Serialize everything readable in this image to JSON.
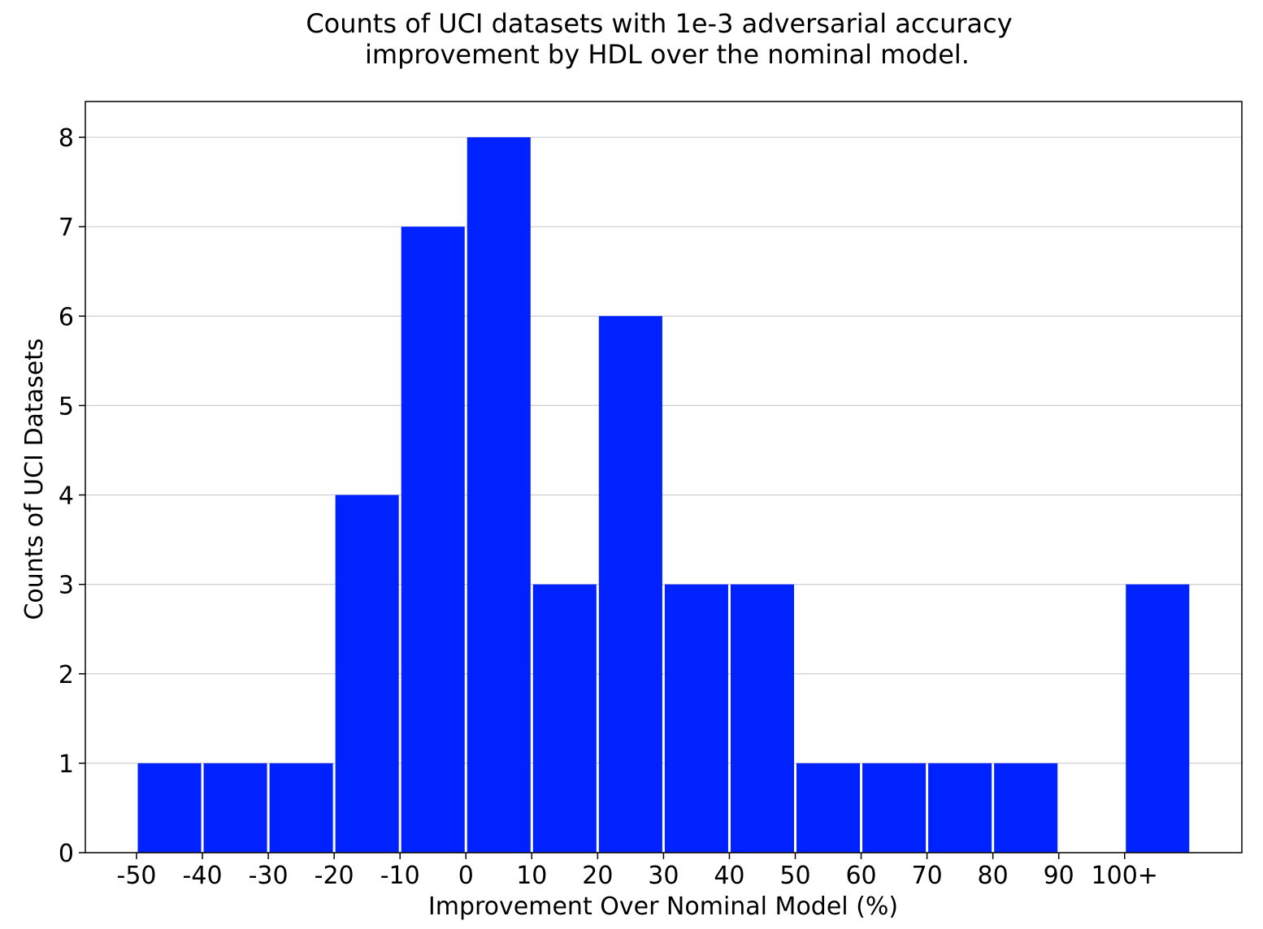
{
  "chart_data": {
    "type": "bar",
    "title_lines": [
      "Counts of UCI datasets with 1e-3 adversarial accuracy",
      "improvement by HDL over the nominal model."
    ],
    "xlabel": "Improvement Over Nominal Model (%)",
    "ylabel": "Counts of UCI Datasets",
    "x_ticks": [
      "-50",
      "-40",
      "-30",
      "-20",
      "-10",
      "0",
      "10",
      "20",
      "30",
      "40",
      "50",
      "60",
      "70",
      "80",
      "90",
      "100+"
    ],
    "y_ticks": [
      "0",
      "1",
      "2",
      "3",
      "4",
      "5",
      "6",
      "7",
      "8"
    ],
    "ylim": [
      0,
      8.4
    ],
    "bins": [
      {
        "start": -50,
        "end": -40,
        "count": 1
      },
      {
        "start": -40,
        "end": -30,
        "count": 1
      },
      {
        "start": -30,
        "end": -20,
        "count": 1
      },
      {
        "start": -20,
        "end": -10,
        "count": 4
      },
      {
        "start": -10,
        "end": 0,
        "count": 7
      },
      {
        "start": 0,
        "end": 10,
        "count": 8
      },
      {
        "start": 10,
        "end": 20,
        "count": 3
      },
      {
        "start": 20,
        "end": 30,
        "count": 6
      },
      {
        "start": 30,
        "end": 40,
        "count": 3
      },
      {
        "start": 40,
        "end": 50,
        "count": 3
      },
      {
        "start": 50,
        "end": 60,
        "count": 1
      },
      {
        "start": 60,
        "end": 70,
        "count": 1
      },
      {
        "start": 70,
        "end": 80,
        "count": 1
      },
      {
        "start": 80,
        "end": 90,
        "count": 1
      },
      {
        "start": 90,
        "end": 100,
        "count": 0
      },
      {
        "start": 100,
        "end": 110,
        "count": 3
      }
    ],
    "grid": "horizontal",
    "bar_color": "#0022ff"
  }
}
